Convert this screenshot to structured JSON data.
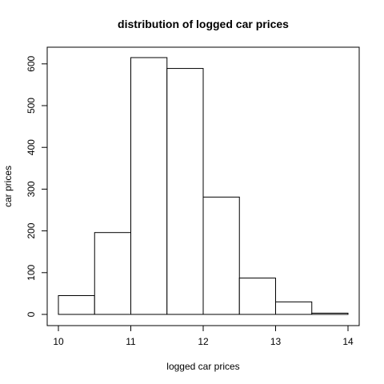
{
  "chart_data": {
    "type": "bar",
    "title": "distribution of logged car prices",
    "xlabel": "logged car prices",
    "ylabel": "car prices",
    "bin_edges": [
      10,
      10.5,
      11,
      11.5,
      12,
      12.5,
      13,
      13.5,
      14
    ],
    "values": [
      45,
      196,
      615,
      589,
      281,
      87,
      30,
      3
    ],
    "xlim": [
      10,
      14
    ],
    "ylim": [
      0,
      615
    ],
    "x_ticks": [
      10,
      11,
      12,
      13,
      14
    ],
    "y_ticks": [
      0,
      100,
      200,
      300,
      400,
      500,
      600
    ],
    "grid": false,
    "bar_fill": "#ffffff",
    "bar_stroke": "#000000"
  }
}
